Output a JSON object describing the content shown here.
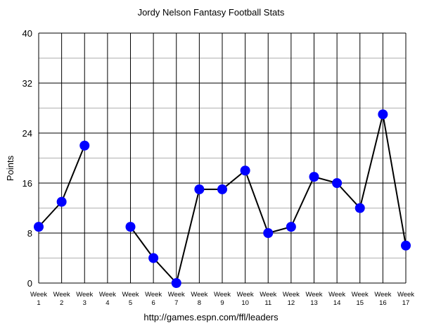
{
  "chart_data": {
    "type": "line",
    "title": "Jordy Nelson Fantasy Football Stats",
    "ylabel": "Points",
    "xlabel": "",
    "source_text": "http://games.espn.com/ffl/leaders",
    "categories": [
      [
        "Week",
        "1"
      ],
      [
        "Week",
        "2"
      ],
      [
        "Week",
        "3"
      ],
      [
        "Week",
        "4"
      ],
      [
        "Week",
        "5"
      ],
      [
        "Week",
        "6"
      ],
      [
        "Week",
        "7"
      ],
      [
        "Week",
        "8"
      ],
      [
        "Week",
        "9"
      ],
      [
        "Week",
        "10"
      ],
      [
        "Week",
        "11"
      ],
      [
        "Week",
        "12"
      ],
      [
        "Week",
        "13"
      ],
      [
        "Week",
        "14"
      ],
      [
        "Week",
        "15"
      ],
      [
        "Week",
        "16"
      ],
      [
        "Week",
        "17"
      ]
    ],
    "series": [
      {
        "values": [
          9,
          13,
          22,
          null,
          9,
          4,
          0,
          15,
          15,
          18,
          8,
          9,
          17,
          16,
          12,
          27,
          6
        ],
        "color": "#0000ff",
        "line_color": "#000000"
      }
    ],
    "ylim": [
      0,
      40
    ],
    "yticks": [
      0,
      8,
      16,
      24,
      32,
      40
    ],
    "grid": true,
    "legend": "none"
  }
}
